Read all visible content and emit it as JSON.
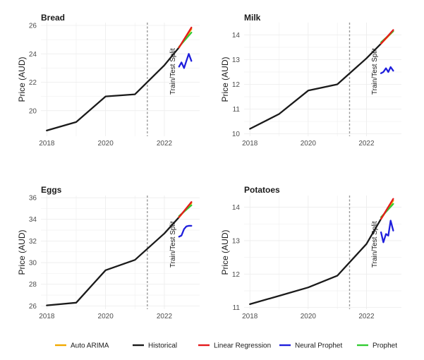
{
  "chart_data": [
    {
      "type": "line",
      "title": "Bread",
      "xlabel": "",
      "ylabel": "Price (AUD)",
      "xlim": [
        2017.8,
        2023.2
      ],
      "ylim": [
        18.2,
        26.2
      ],
      "x_ticks": [
        2018,
        2020,
        2022
      ],
      "y_ticks": [
        20,
        22,
        24,
        26
      ],
      "split_x": 2021.42,
      "split_label": "Train/Test Split",
      "series": [
        {
          "name": "Historical",
          "x": [
            2018,
            2019,
            2020,
            2021,
            2022,
            2022.5
          ],
          "y": [
            18.6,
            19.2,
            21.0,
            21.15,
            23.2,
            24.45
          ]
        },
        {
          "name": "Auto ARIMA",
          "x": [
            2022.5,
            2022.92
          ],
          "y": [
            24.45,
            25.75
          ]
        },
        {
          "name": "Linear Regression",
          "x": [
            2022.5,
            2022.92
          ],
          "y": [
            24.45,
            25.85
          ]
        },
        {
          "name": "Neural Prophet",
          "x": [
            2022.5,
            2022.58,
            2022.67,
            2022.75,
            2022.83,
            2022.92
          ],
          "y": [
            23.1,
            23.4,
            23.0,
            23.5,
            24.0,
            23.5
          ]
        },
        {
          "name": "Prophet",
          "x": [
            2022.5,
            2022.92
          ],
          "y": [
            24.5,
            25.5
          ]
        }
      ]
    },
    {
      "type": "line",
      "title": "Milk",
      "xlabel": "",
      "ylabel": "Price (AUD)",
      "xlim": [
        2017.8,
        2023.2
      ],
      "ylim": [
        9.9,
        14.5
      ],
      "x_ticks": [
        2018,
        2020,
        2022
      ],
      "y_ticks": [
        10,
        11,
        12,
        13,
        14
      ],
      "split_x": 2021.42,
      "split_label": "Train/Test Split",
      "series": [
        {
          "name": "Historical",
          "x": [
            2018,
            2019,
            2020,
            2021,
            2022,
            2022.5
          ],
          "y": [
            10.2,
            10.8,
            11.75,
            12.0,
            13.05,
            13.65
          ]
        },
        {
          "name": "Auto ARIMA",
          "x": [
            2022.5,
            2022.92
          ],
          "y": [
            13.65,
            14.15
          ]
        },
        {
          "name": "Linear Regression",
          "x": [
            2022.5,
            2022.92
          ],
          "y": [
            13.65,
            14.2
          ]
        },
        {
          "name": "Neural Prophet",
          "x": [
            2022.5,
            2022.58,
            2022.67,
            2022.75,
            2022.83,
            2022.92
          ],
          "y": [
            12.45,
            12.5,
            12.65,
            12.5,
            12.7,
            12.55
          ]
        },
        {
          "name": "Prophet",
          "x": [
            2022.5,
            2022.92
          ],
          "y": [
            13.7,
            14.15
          ]
        }
      ]
    },
    {
      "type": "line",
      "title": "Eggs",
      "xlabel": "",
      "ylabel": "Price (AUD)",
      "xlim": [
        2017.8,
        2023.2
      ],
      "ylim": [
        25.7,
        36.2
      ],
      "x_ticks": [
        2018,
        2020,
        2022
      ],
      "y_ticks": [
        26,
        28,
        30,
        32,
        34,
        36
      ],
      "split_x": 2021.42,
      "split_label": "Train/Test Split",
      "series": [
        {
          "name": "Historical",
          "x": [
            2018,
            2019,
            2020,
            2021,
            2022,
            2022.5
          ],
          "y": [
            26.05,
            26.3,
            29.3,
            30.25,
            32.7,
            34.2
          ]
        },
        {
          "name": "Auto ARIMA",
          "x": [
            2022.5,
            2022.92
          ],
          "y": [
            34.2,
            35.5
          ]
        },
        {
          "name": "Linear Regression",
          "x": [
            2022.5,
            2022.92
          ],
          "y": [
            34.2,
            35.6
          ]
        },
        {
          "name": "Neural Prophet",
          "x": [
            2022.5,
            2022.58,
            2022.67,
            2022.75,
            2022.83,
            2022.92
          ],
          "y": [
            32.4,
            32.5,
            33.1,
            33.35,
            33.4,
            33.4
          ]
        },
        {
          "name": "Prophet",
          "x": [
            2022.5,
            2022.92
          ],
          "y": [
            34.3,
            35.3
          ]
        }
      ]
    },
    {
      "type": "line",
      "title": "Potatoes",
      "xlabel": "",
      "ylabel": "Price (AUD)",
      "xlim": [
        2017.8,
        2023.2
      ],
      "ylim": [
        10.95,
        14.35
      ],
      "x_ticks": [
        2018,
        2020,
        2022
      ],
      "y_ticks": [
        11,
        12,
        13,
        14
      ],
      "split_x": 2021.42,
      "split_label": "Train/Test Split",
      "series": [
        {
          "name": "Historical",
          "x": [
            2018,
            2019,
            2020,
            2021,
            2022,
            2022.5
          ],
          "y": [
            11.1,
            11.35,
            11.6,
            11.95,
            12.9,
            13.65
          ]
        },
        {
          "name": "Auto ARIMA",
          "x": [
            2022.5,
            2022.92
          ],
          "y": [
            13.65,
            14.2
          ]
        },
        {
          "name": "Linear Regression",
          "x": [
            2022.5,
            2022.92
          ],
          "y": [
            13.65,
            14.25
          ]
        },
        {
          "name": "Neural Prophet",
          "x": [
            2022.5,
            2022.58,
            2022.67,
            2022.75,
            2022.83,
            2022.92
          ],
          "y": [
            13.25,
            12.95,
            13.2,
            13.15,
            13.6,
            13.3
          ]
        },
        {
          "name": "Prophet",
          "x": [
            2022.5,
            2022.92
          ],
          "y": [
            13.7,
            14.1
          ]
        }
      ]
    }
  ],
  "legend": {
    "placement": "bottom",
    "items": [
      {
        "label": "Auto ARIMA",
        "color": "#f2a900"
      },
      {
        "label": "Historical",
        "color": "#1a1a1a"
      },
      {
        "label": "Linear Regression",
        "color": "#e41a1c"
      },
      {
        "label": "Neural Prophet",
        "color": "#1f1fdc"
      },
      {
        "label": "Prophet",
        "color": "#33cc33"
      }
    ]
  },
  "grid": true,
  "colors": {
    "Auto ARIMA": "#f2a900",
    "Historical": "#1a1a1a",
    "Linear Regression": "#e41a1c",
    "Neural Prophet": "#1f1fdc",
    "Prophet": "#33cc33",
    "split_line": "#999999"
  }
}
